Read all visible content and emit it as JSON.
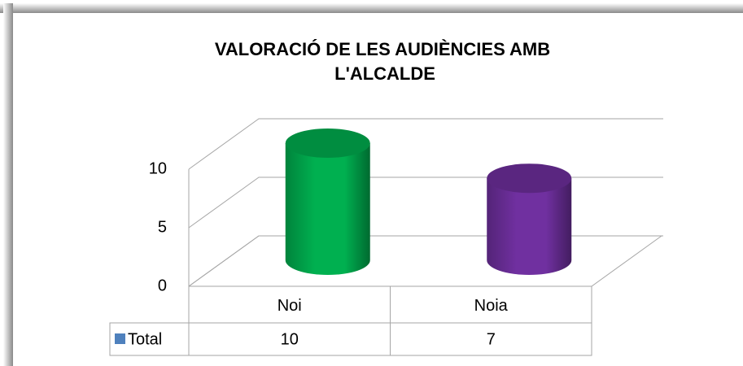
{
  "chart_data": {
    "type": "cylinder3d",
    "title": "VALORACIÓ DE LES AUDIÈNCIES AMB L'ALCALDE",
    "categories": [
      "Noi",
      "Noia"
    ],
    "series": [
      {
        "name": "Total",
        "color": "#4f81bd",
        "values": [
          10,
          7
        ]
      }
    ],
    "colors": [
      "#00b050",
      "#7030a0"
    ],
    "ylim": [
      0,
      10
    ],
    "yticks": [
      0,
      5,
      10
    ],
    "grid": true
  }
}
